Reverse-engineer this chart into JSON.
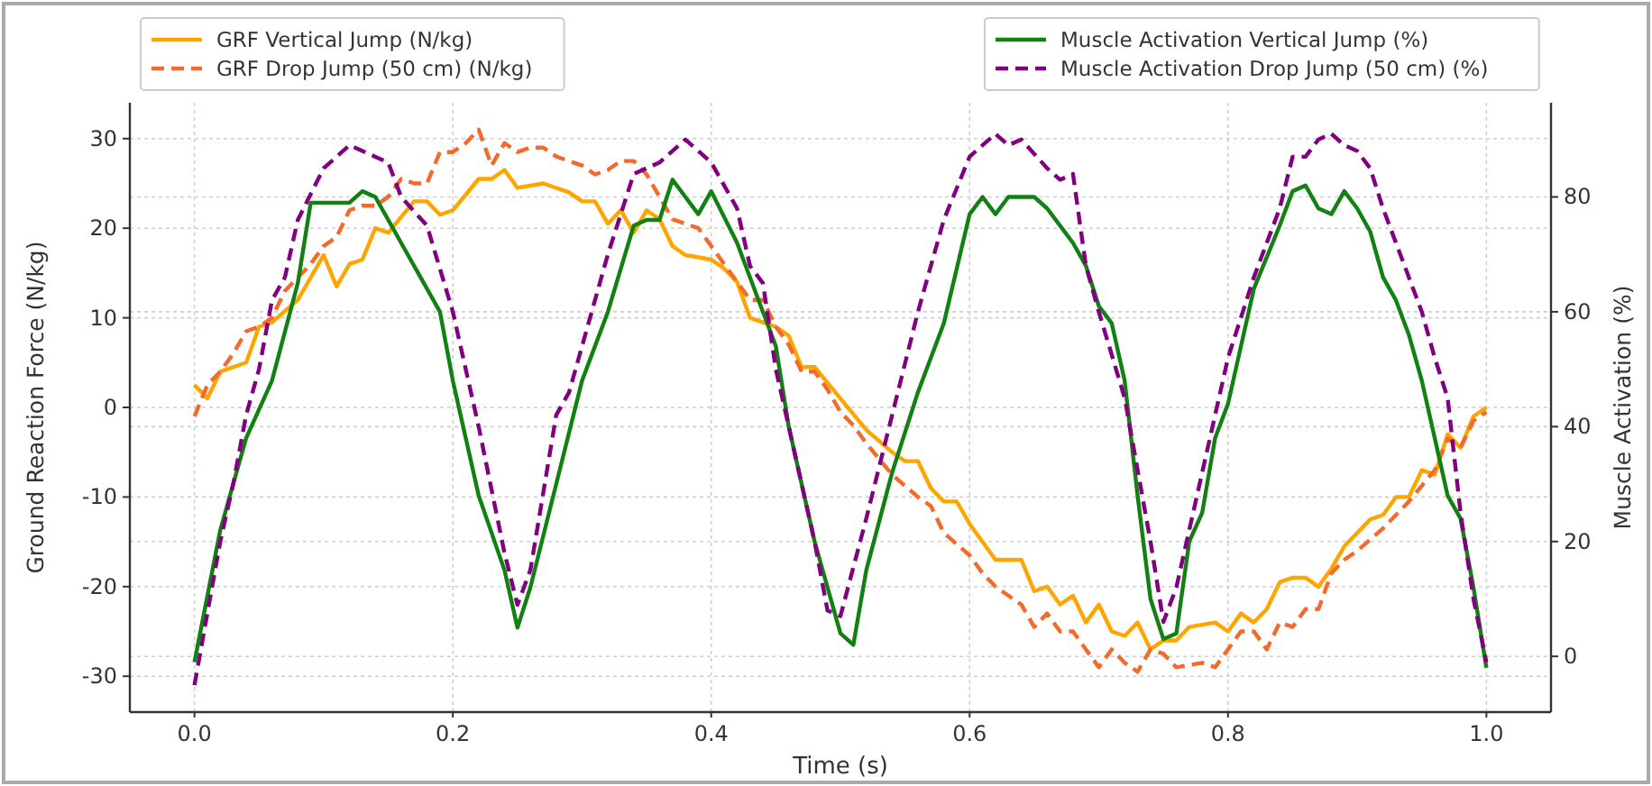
{
  "chart_data": {
    "type": "line",
    "xlabel": "Time (s)",
    "ylabel": "Ground Reaction Force (N/kg)",
    "y2label": "Muscle Activation (%)",
    "xlim": [
      -0.05,
      1.05
    ],
    "xticks": [
      {
        "value": 0,
        "label": "0.0"
      },
      {
        "value": 0.2,
        "label": "0.2"
      },
      {
        "value": 0.4,
        "label": "0.4"
      },
      {
        "value": 0.6,
        "label": "0.6"
      },
      {
        "value": 0.8,
        "label": "0.8"
      },
      {
        "value": 1,
        "label": "1.0"
      }
    ],
    "ylim": [
      -34,
      34
    ],
    "yticks": [
      -30,
      -20,
      -10,
      0,
      10,
      20,
      30
    ],
    "y2lim": [
      -9.7,
      96.4
    ],
    "y2ticks": [
      0,
      20,
      40,
      60,
      80
    ],
    "grid": true,
    "legend": "top",
    "series": [
      {
        "name": "GRF Vertical Jump (N/kg)",
        "color": "#ffa500",
        "line_style": "solid",
        "x": [
          0,
          0.01,
          0.02,
          0.04,
          0.05,
          0.06,
          0.08,
          0.1,
          0.11,
          0.12,
          0.13,
          0.14,
          0.15,
          0.17,
          0.18,
          0.19,
          0.2,
          0.22,
          0.23,
          0.24,
          0.25,
          0.27,
          0.29,
          0.3,
          0.31,
          0.32,
          0.33,
          0.34,
          0.35,
          0.36,
          0.37,
          0.38,
          0.4,
          0.41,
          0.42,
          0.43,
          0.44,
          0.45,
          0.46,
          0.47,
          0.48,
          0.5,
          0.52,
          0.54,
          0.55,
          0.56,
          0.57,
          0.58,
          0.59,
          0.6,
          0.62,
          0.64,
          0.65,
          0.66,
          0.67,
          0.68,
          0.69,
          0.7,
          0.71,
          0.72,
          0.73,
          0.74,
          0.75,
          0.76,
          0.77,
          0.79,
          0.8,
          0.81,
          0.82,
          0.83,
          0.84,
          0.85,
          0.86,
          0.87,
          0.88,
          0.89,
          0.9,
          0.91,
          0.92,
          0.93,
          0.94,
          0.95,
          0.96,
          0.97,
          0.98,
          0.99,
          1
        ],
        "values": [
          2.5,
          1,
          4,
          5,
          9,
          9.5,
          12,
          17,
          13.5,
          16,
          16.5,
          20,
          19.5,
          23,
          23,
          21.5,
          22,
          25.5,
          25.5,
          26.5,
          24.5,
          25,
          24,
          23,
          23,
          20.5,
          22,
          19.5,
          22,
          21,
          18,
          17,
          16.5,
          15.5,
          14,
          10,
          9.5,
          9,
          8,
          4.5,
          4.5,
          1,
          -2.5,
          -5,
          -6,
          -6,
          -9,
          -10.5,
          -10.5,
          -13,
          -17,
          -17,
          -20.5,
          -20,
          -22,
          -21,
          -24,
          -22,
          -25,
          -25.5,
          -24,
          -27,
          -26,
          -26,
          -24.5,
          -24,
          -25,
          -23,
          -24,
          -22.5,
          -19.5,
          -19,
          -19,
          -20,
          -18,
          -15.5,
          -14,
          -12.5,
          -12,
          -10,
          -10,
          -7,
          -7.5,
          -3,
          -4.5,
          -1,
          0
        ]
      },
      {
        "name": "GRF Drop Jump (50 cm) (N/kg)",
        "color": "#f26b2c",
        "line_style": "dashed",
        "x": [
          0,
          0.01,
          0.02,
          0.03,
          0.04,
          0.05,
          0.06,
          0.07,
          0.08,
          0.09,
          0.1,
          0.11,
          0.12,
          0.13,
          0.14,
          0.15,
          0.16,
          0.17,
          0.18,
          0.19,
          0.2,
          0.21,
          0.22,
          0.23,
          0.24,
          0.25,
          0.26,
          0.27,
          0.28,
          0.29,
          0.3,
          0.31,
          0.32,
          0.33,
          0.34,
          0.35,
          0.36,
          0.37,
          0.38,
          0.39,
          0.4,
          0.41,
          0.42,
          0.43,
          0.44,
          0.45,
          0.46,
          0.47,
          0.48,
          0.49,
          0.5,
          0.51,
          0.52,
          0.54,
          0.56,
          0.57,
          0.58,
          0.6,
          0.61,
          0.62,
          0.63,
          0.64,
          0.65,
          0.66,
          0.67,
          0.68,
          0.69,
          0.7,
          0.71,
          0.72,
          0.73,
          0.74,
          0.75,
          0.76,
          0.78,
          0.79,
          0.8,
          0.81,
          0.82,
          0.83,
          0.84,
          0.85,
          0.86,
          0.87,
          0.88,
          0.89,
          0.9,
          0.92,
          0.94,
          0.96,
          0.97,
          0.98,
          0.99,
          1
        ],
        "values": [
          -1,
          2.5,
          4,
          6,
          8.5,
          9,
          10,
          13,
          14.5,
          16,
          18,
          19,
          22,
          22.5,
          22.5,
          23.5,
          25.5,
          25,
          25,
          28.5,
          28.5,
          29.5,
          31,
          27,
          29.5,
          28.5,
          29,
          29,
          28,
          27.5,
          27,
          26,
          26.5,
          27.5,
          27.5,
          26,
          23.5,
          21,
          20.5,
          20,
          18,
          16,
          14,
          12,
          12,
          9,
          7,
          4,
          4,
          2,
          -0.5,
          -2,
          -4,
          -7.5,
          -10,
          -11,
          -14,
          -16.5,
          -18.5,
          -20,
          -21,
          -22,
          -24.5,
          -23,
          -25,
          -25,
          -27,
          -29,
          -27,
          -28.5,
          -29.5,
          -27,
          -27.5,
          -29,
          -28.5,
          -29,
          -27,
          -25,
          -25,
          -27,
          -24,
          -24.5,
          -22.5,
          -22.5,
          -18.5,
          -17,
          -16,
          -13.5,
          -10.5,
          -7,
          -3.5,
          -4.5,
          -1.5,
          -0.5
        ]
      },
      {
        "name": "Muscle Activation Vertical Jump (%)",
        "color": "#138013",
        "axis": "y2",
        "line_style": "solid",
        "x": [
          0,
          0.02,
          0.04,
          0.06,
          0.08,
          0.09,
          0.1,
          0.12,
          0.13,
          0.14,
          0.16,
          0.18,
          0.19,
          0.2,
          0.22,
          0.24,
          0.25,
          0.26,
          0.28,
          0.3,
          0.32,
          0.34,
          0.35,
          0.36,
          0.37,
          0.38,
          0.39,
          0.4,
          0.42,
          0.44,
          0.45,
          0.46,
          0.48,
          0.5,
          0.51,
          0.52,
          0.54,
          0.56,
          0.58,
          0.6,
          0.61,
          0.62,
          0.63,
          0.65,
          0.66,
          0.68,
          0.69,
          0.7,
          0.71,
          0.72,
          0.73,
          0.74,
          0.75,
          0.76,
          0.77,
          0.78,
          0.79,
          0.8,
          0.82,
          0.84,
          0.85,
          0.86,
          0.87,
          0.88,
          0.89,
          0.9,
          0.91,
          0.92,
          0.93,
          0.94,
          0.95,
          0.96,
          0.97,
          0.98,
          0.99,
          1
        ],
        "values": [
          -1,
          22,
          38,
          48,
          65,
          79,
          79,
          79,
          81,
          80,
          72,
          64,
          60,
          48,
          28,
          15,
          5,
          12,
          30,
          48,
          60,
          75,
          76,
          76,
          83,
          80,
          77,
          81,
          72,
          60,
          54,
          40,
          20,
          4,
          2,
          15,
          32,
          46,
          58,
          77,
          80,
          77,
          80,
          80,
          78,
          72,
          68,
          61,
          58,
          48,
          28,
          10,
          3,
          4,
          20,
          25,
          38,
          44,
          64,
          75,
          81,
          82,
          78,
          77,
          81,
          78,
          74,
          66,
          62,
          56,
          48,
          38,
          28,
          24,
          12,
          -2
        ]
      },
      {
        "name": "Muscle Activation Drop Jump (50 cm) (%)",
        "color": "#800080",
        "axis": "y2",
        "line_style": "dashed",
        "x": [
          0,
          0.02,
          0.03,
          0.04,
          0.05,
          0.06,
          0.07,
          0.08,
          0.1,
          0.12,
          0.14,
          0.15,
          0.16,
          0.18,
          0.2,
          0.22,
          0.24,
          0.25,
          0.26,
          0.28,
          0.29,
          0.3,
          0.32,
          0.34,
          0.35,
          0.36,
          0.38,
          0.39,
          0.4,
          0.42,
          0.43,
          0.44,
          0.45,
          0.48,
          0.49,
          0.5,
          0.52,
          0.54,
          0.56,
          0.58,
          0.6,
          0.61,
          0.62,
          0.63,
          0.64,
          0.66,
          0.67,
          0.68,
          0.69,
          0.7,
          0.72,
          0.74,
          0.75,
          0.76,
          0.78,
          0.8,
          0.82,
          0.84,
          0.85,
          0.86,
          0.87,
          0.88,
          0.89,
          0.9,
          0.91,
          0.92,
          0.93,
          0.94,
          0.95,
          0.96,
          0.97,
          0.98,
          0.99,
          1
        ],
        "values": [
          -5,
          20,
          30,
          42,
          50,
          62,
          66,
          76,
          85,
          89,
          87,
          86,
          80,
          75,
          60,
          40,
          18,
          9,
          15,
          42,
          46,
          54,
          70,
          84,
          85,
          86,
          90,
          88,
          86,
          78,
          68,
          65,
          50,
          20,
          8,
          7,
          24,
          42,
          60,
          76,
          87,
          89,
          91,
          89,
          90,
          85,
          83,
          84,
          68,
          60,
          45,
          20,
          6,
          12,
          32,
          52,
          66,
          78,
          87,
          87,
          90,
          91,
          89,
          88,
          85,
          78,
          72,
          66,
          60,
          52,
          45,
          25,
          10,
          -1
        ]
      }
    ]
  }
}
